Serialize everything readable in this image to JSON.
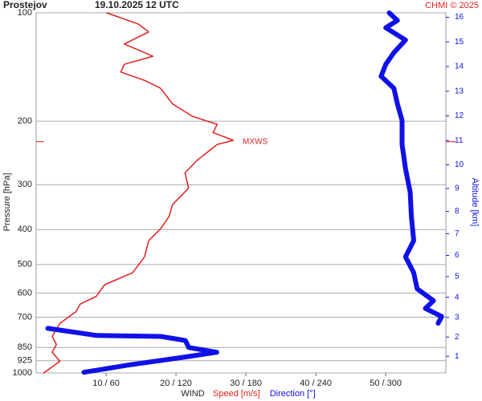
{
  "chart_data": {
    "type": "line",
    "title": "Prostejov",
    "subtitle": "19.10.2025 12 UTC",
    "credit": "CHMI © 2025",
    "ylabel": "Pressure [hPa]",
    "y2label": "Altitude [km]",
    "xlabel": "WIND",
    "log_y": true,
    "grid": true,
    "ylim": [
      1000,
      100
    ],
    "yticks": [
      100,
      200,
      300,
      400,
      500,
      600,
      700,
      850,
      925,
      1000
    ],
    "xlim": [
      0,
      58.6
    ],
    "x2lim": [
      0,
      351.6
    ],
    "xticks": [
      {
        "value": 10,
        "label": "10 / 60"
      },
      {
        "value": 20,
        "label": "20 / 120"
      },
      {
        "value": 30,
        "label": "30 / 180"
      },
      {
        "value": 40,
        "label": "40 / 240"
      },
      {
        "value": 50,
        "label": "50 / 300"
      }
    ],
    "y2ticks": [
      1,
      2,
      3,
      4,
      5,
      6,
      7,
      8,
      9,
      10,
      11,
      12,
      13,
      14,
      15,
      16
    ],
    "annotation": {
      "text": "MXWS",
      "pressure": 228,
      "color": "#e02020"
    },
    "series": [
      {
        "name": "Speed [m/s]",
        "color": "#e02020",
        "width": 1.5,
        "pressure": [
          100,
          107.4,
          113,
          122,
          132,
          139,
          146,
          154,
          162,
          179,
          194,
          204,
          215,
          226,
          232,
          257,
          278,
          307,
          341,
          368,
          398,
          429,
          476,
          527,
          569,
          613,
          644,
          676,
          728,
          792,
          834,
          876,
          928,
          1000
        ],
        "values": [
          10.1,
          14.6,
          16.1,
          12.6,
          16.7,
          12.6,
          12.1,
          15.5,
          17.8,
          19.5,
          22.4,
          25.9,
          25.3,
          28.2,
          25.9,
          23.0,
          21.3,
          21.8,
          19.5,
          19.0,
          17.8,
          16.1,
          15.5,
          13.8,
          9.8,
          8.6,
          6.3,
          5.7,
          3.4,
          2.3,
          2.9,
          2.3,
          3.4,
          1.1
        ]
      },
      {
        "name": "Direction [°]",
        "color": "#1010e8",
        "width": 6,
        "axis": "x2",
        "pressure": [
          100,
          105,
          110,
          119,
          129,
          139,
          150,
          162,
          179,
          199,
          232,
          271,
          315,
          368,
          429,
          476,
          527,
          584,
          630,
          662,
          697,
          728,
          730,
          752,
          787,
          792,
          813,
          850,
          876,
          903,
          951,
          996
        ],
        "values": [
          303,
          310,
          300,
          317,
          307,
          300,
          296,
          307,
          310,
          314,
          314,
          317,
          321,
          322,
          324,
          317,
          324,
          327,
          341,
          334,
          348,
          345,
          null,
          10,
          52,
          107,
          128,
          131,
          155,
          128,
          79,
          41
        ]
      }
    ]
  }
}
